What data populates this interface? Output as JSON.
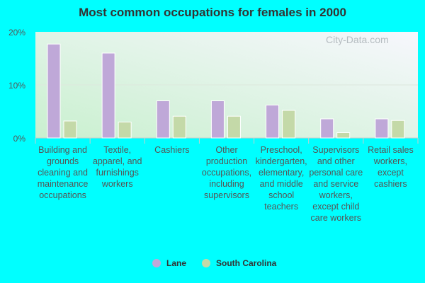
{
  "chart_data": {
    "type": "bar",
    "title": "Most common occupations for females in 2000",
    "categories": [
      "Building and grounds cleaning and maintenance occupations",
      "Textile, apparel, and furnishings workers",
      "Cashiers",
      "Other production occupations, including supervisors",
      "Preschool, kindergarten, elementary, and middle school teachers",
      "Supervisors and other personal care and service workers, except child care workers",
      "Retail sales workers, except cashiers"
    ],
    "series": [
      {
        "name": "Lane",
        "color": "#bfa8d8",
        "values": [
          17.7,
          16.0,
          7.0,
          7.0,
          6.2,
          3.6,
          3.6
        ]
      },
      {
        "name": "South Carolina",
        "color": "#c4d9a8",
        "values": [
          3.2,
          3.0,
          4.1,
          4.1,
          5.2,
          1.0,
          3.3
        ]
      }
    ],
    "yticks": [
      "0%",
      "10%",
      "20%"
    ],
    "ylim": [
      0,
      20
    ],
    "grid": true,
    "legend": "bottom",
    "watermark": "City-Data.com"
  }
}
